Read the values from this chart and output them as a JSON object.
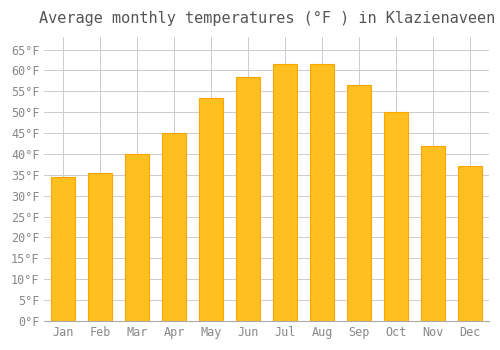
{
  "title": "Average monthly temperatures (°F ) in Klazienaveen",
  "months": [
    "Jan",
    "Feb",
    "Mar",
    "Apr",
    "May",
    "Jun",
    "Jul",
    "Aug",
    "Sep",
    "Oct",
    "Nov",
    "Dec"
  ],
  "values": [
    34.5,
    35.5,
    40,
    45,
    53.5,
    58.5,
    61.5,
    61.5,
    56.5,
    50,
    42,
    37
  ],
  "bar_color": "#FFC020",
  "bar_edge_color": "#FFA500",
  "background_color": "#FFFFFF",
  "grid_color": "#CCCCCC",
  "ylim": [
    0,
    68
  ],
  "yticks": [
    0,
    5,
    10,
    15,
    20,
    25,
    30,
    35,
    40,
    45,
    50,
    55,
    60,
    65
  ],
  "title_fontsize": 11,
  "tick_fontsize": 8.5,
  "title_color": "#555555",
  "tick_color": "#888888"
}
